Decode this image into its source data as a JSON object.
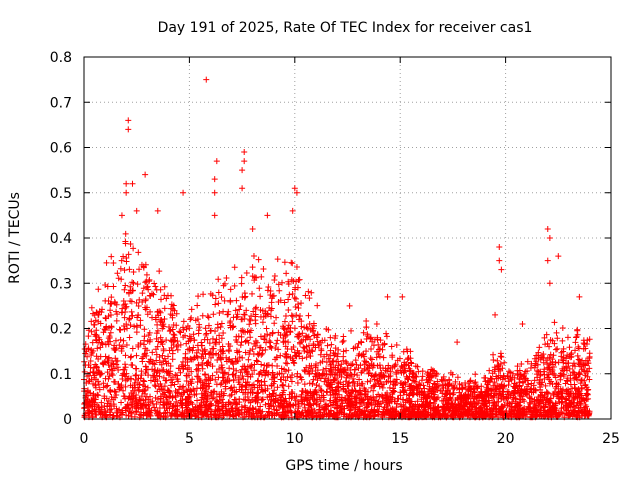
{
  "chart_data": {
    "type": "scatter",
    "title": "Day 191 of 2025, Rate Of TEC Index for receiver cas1",
    "xlabel": "GPS time / hours",
    "ylabel": "ROTI / TECUs",
    "xlim": [
      0,
      25
    ],
    "ylim": [
      0,
      0.8
    ],
    "x_ticks": [
      0,
      5,
      10,
      15,
      20,
      25
    ],
    "y_ticks": [
      0,
      0.1,
      0.2,
      0.3,
      0.4,
      0.5,
      0.6,
      0.7,
      0.8
    ],
    "x_tick_labels": [
      "0",
      "5",
      "10",
      "15",
      "20",
      "25"
    ],
    "y_tick_labels": [
      "0",
      "0.1",
      "0.2",
      "0.3",
      "0.4",
      "0.5",
      "0.6",
      "0.7",
      "0.8"
    ],
    "grid": true,
    "marker": "plus",
    "color": "#ff0000",
    "series": [
      {
        "name": "ROTI",
        "density_envelope": [
          {
            "x": 0.0,
            "y_max": 0.2
          },
          {
            "x": 0.5,
            "y_max": 0.3
          },
          {
            "x": 1.0,
            "y_max": 0.34
          },
          {
            "x": 1.5,
            "y_max": 0.4
          },
          {
            "x": 2.0,
            "y_max": 0.45
          },
          {
            "x": 2.5,
            "y_max": 0.42
          },
          {
            "x": 3.0,
            "y_max": 0.4
          },
          {
            "x": 3.5,
            "y_max": 0.33
          },
          {
            "x": 4.0,
            "y_max": 0.3
          },
          {
            "x": 4.5,
            "y_max": 0.28
          },
          {
            "x": 5.0,
            "y_max": 0.26
          },
          {
            "x": 5.5,
            "y_max": 0.28
          },
          {
            "x": 6.0,
            "y_max": 0.3
          },
          {
            "x": 6.5,
            "y_max": 0.34
          },
          {
            "x": 7.0,
            "y_max": 0.33
          },
          {
            "x": 7.5,
            "y_max": 0.38
          },
          {
            "x": 8.0,
            "y_max": 0.36
          },
          {
            "x": 8.5,
            "y_max": 0.38
          },
          {
            "x": 9.0,
            "y_max": 0.35
          },
          {
            "x": 9.5,
            "y_max": 0.38
          },
          {
            "x": 10.0,
            "y_max": 0.4
          },
          {
            "x": 10.5,
            "y_max": 0.32
          },
          {
            "x": 11.0,
            "y_max": 0.28
          },
          {
            "x": 11.5,
            "y_max": 0.22
          },
          {
            "x": 12.0,
            "y_max": 0.18
          },
          {
            "x": 12.5,
            "y_max": 0.2
          },
          {
            "x": 13.0,
            "y_max": 0.2
          },
          {
            "x": 13.5,
            "y_max": 0.24
          },
          {
            "x": 14.0,
            "y_max": 0.24
          },
          {
            "x": 14.5,
            "y_max": 0.2
          },
          {
            "x": 15.0,
            "y_max": 0.18
          },
          {
            "x": 15.5,
            "y_max": 0.16
          },
          {
            "x": 16.0,
            "y_max": 0.14
          },
          {
            "x": 16.5,
            "y_max": 0.12
          },
          {
            "x": 17.0,
            "y_max": 0.12
          },
          {
            "x": 17.5,
            "y_max": 0.1
          },
          {
            "x": 18.0,
            "y_max": 0.08
          },
          {
            "x": 18.5,
            "y_max": 0.1
          },
          {
            "x": 19.0,
            "y_max": 0.1
          },
          {
            "x": 19.5,
            "y_max": 0.16
          },
          {
            "x": 20.0,
            "y_max": 0.14
          },
          {
            "x": 20.5,
            "y_max": 0.12
          },
          {
            "x": 21.0,
            "y_max": 0.14
          },
          {
            "x": 21.5,
            "y_max": 0.18
          },
          {
            "x": 22.0,
            "y_max": 0.24
          },
          {
            "x": 22.5,
            "y_max": 0.22
          },
          {
            "x": 23.0,
            "y_max": 0.2
          },
          {
            "x": 23.5,
            "y_max": 0.22
          },
          {
            "x": 24.0,
            "y_max": 0.2
          }
        ],
        "outliers": [
          [
            5.8,
            0.75
          ],
          [
            2.1,
            0.66
          ],
          [
            2.1,
            0.64
          ],
          [
            6.3,
            0.57
          ],
          [
            7.6,
            0.59
          ],
          [
            7.6,
            0.57
          ],
          [
            7.5,
            0.55
          ],
          [
            6.2,
            0.53
          ],
          [
            6.2,
            0.5
          ],
          [
            2.0,
            0.52
          ],
          [
            2.3,
            0.52
          ],
          [
            2.9,
            0.54
          ],
          [
            2.0,
            0.5
          ],
          [
            4.7,
            0.5
          ],
          [
            10.0,
            0.51
          ],
          [
            10.1,
            0.5
          ],
          [
            6.2,
            0.45
          ],
          [
            7.5,
            0.51
          ],
          [
            8.7,
            0.45
          ],
          [
            1.8,
            0.45
          ],
          [
            2.5,
            0.46
          ],
          [
            3.5,
            0.46
          ],
          [
            9.9,
            0.46
          ],
          [
            8.0,
            0.42
          ],
          [
            19.7,
            0.38
          ],
          [
            19.7,
            0.35
          ],
          [
            19.8,
            0.33
          ],
          [
            22.0,
            0.42
          ],
          [
            22.1,
            0.4
          ],
          [
            22.0,
            0.35
          ],
          [
            22.5,
            0.36
          ],
          [
            22.1,
            0.3
          ],
          [
            19.5,
            0.23
          ],
          [
            20.8,
            0.21
          ],
          [
            14.4,
            0.27
          ],
          [
            15.1,
            0.27
          ],
          [
            12.6,
            0.25
          ],
          [
            17.7,
            0.17
          ],
          [
            23.5,
            0.27
          ]
        ]
      }
    ]
  }
}
